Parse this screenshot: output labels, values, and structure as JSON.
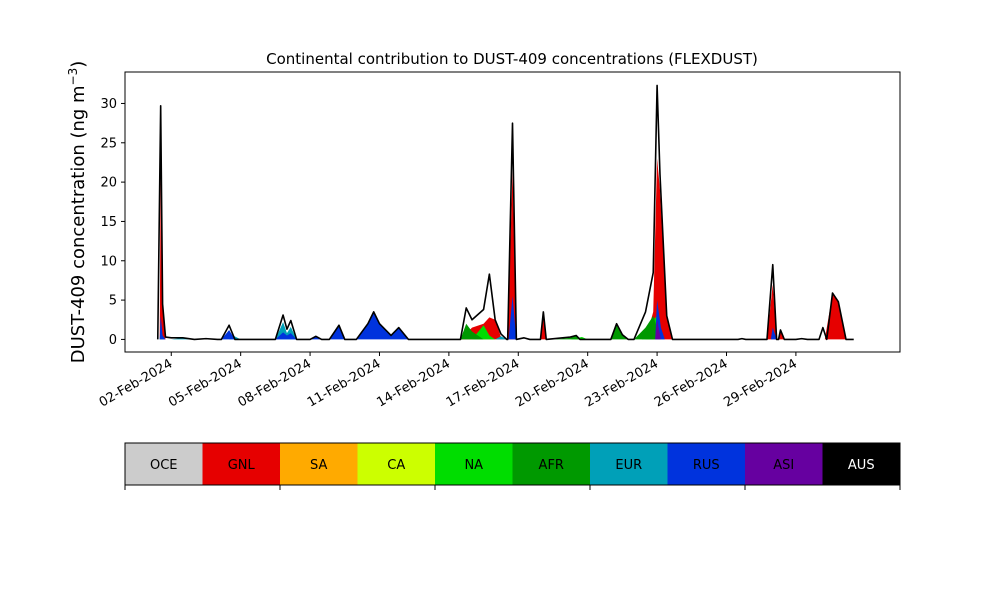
{
  "chart_data": {
    "type": "area",
    "stacked": true,
    "title": "Continental contribution to DUST-409 concentrations (FLEXDUST)",
    "ylabel": "DUST-409 concentration (ng m",
    "ylabel_superscript": "−3",
    "ylabel_close": ")",
    "xlabel": "",
    "x_range": [
      "2024-01-31T00:00",
      "2024-03-04T12:00"
    ],
    "ylim": [
      -1.6,
      34
    ],
    "y_ticks": [
      0,
      5,
      10,
      15,
      20,
      25,
      30
    ],
    "x_ticks": [
      "02-Feb-2024",
      "05-Feb-2024",
      "08-Feb-2024",
      "11-Feb-2024",
      "14-Feb-2024",
      "17-Feb-2024",
      "20-Feb-2024",
      "23-Feb-2024",
      "26-Feb-2024",
      "29-Feb-2024"
    ],
    "x_tick_dates": [
      "2024-02-02",
      "2024-02-05",
      "2024-02-08",
      "2024-02-11",
      "2024-02-14",
      "2024-02-17",
      "2024-02-20",
      "2024-02-23",
      "2024-02-26",
      "2024-02-29"
    ],
    "grid": false,
    "series": [
      {
        "name": "OCE",
        "color": "#cccccc",
        "points": []
      },
      {
        "name": "GNL",
        "color": "#e60000",
        "points": [
          [
            "2024-02-01T12:00",
            0
          ],
          [
            "2024-02-01T13:00",
            22
          ],
          [
            "2024-02-01T15:00",
            4
          ],
          [
            "2024-02-01T18:00",
            0
          ],
          [
            "2024-02-14T12:00",
            0
          ],
          [
            "2024-02-15T00:00",
            1.5
          ],
          [
            "2024-02-15T12:00",
            2.0
          ],
          [
            "2024-02-15T18:00",
            2.8
          ],
          [
            "2024-02-16T00:00",
            2.5
          ],
          [
            "2024-02-16T06:00",
            0.3
          ],
          [
            "2024-02-16T12:00",
            0
          ],
          [
            "2024-02-16T13:00",
            0
          ],
          [
            "2024-02-16T18:00",
            21.5
          ],
          [
            "2024-02-16T22:00",
            0
          ],
          [
            "2024-02-17T23:00",
            0
          ],
          [
            "2024-02-18T02:00",
            2.8
          ],
          [
            "2024-02-18T05:00",
            0
          ],
          [
            "2024-02-22T12:00",
            0
          ],
          [
            "2024-02-22T20:00",
            3.5
          ],
          [
            "2024-02-23T00:00",
            23
          ],
          [
            "2024-02-23T03:00",
            19
          ],
          [
            "2024-02-23T10:00",
            3
          ],
          [
            "2024-02-23T16:00",
            0
          ],
          [
            "2024-02-27T18:00",
            0
          ],
          [
            "2024-02-28T00:00",
            7.0
          ],
          [
            "2024-02-28T04:00",
            0
          ],
          [
            "2024-02-28T06:00",
            0
          ],
          [
            "2024-02-28T08:00",
            1.0
          ],
          [
            "2024-02-28T12:00",
            0
          ],
          [
            "2024-03-01T06:00",
            0
          ],
          [
            "2024-03-01T14:00",
            5.8
          ],
          [
            "2024-03-01T20:00",
            4.8
          ],
          [
            "2024-03-02T04:00",
            0
          ]
        ]
      },
      {
        "name": "SA",
        "color": "#ffaa00",
        "points": [
          [
            "2024-02-22T22:00",
            0
          ],
          [
            "2024-02-23T02:00",
            1.0
          ],
          [
            "2024-02-23T06:00",
            0
          ]
        ]
      },
      {
        "name": "CA",
        "color": "#ccff00",
        "points": []
      },
      {
        "name": "NA",
        "color": "#00dd00",
        "points": [
          [
            "2024-02-15T00:00",
            0
          ],
          [
            "2024-02-15T12:00",
            1.8
          ],
          [
            "2024-02-15T18:00",
            0.5
          ],
          [
            "2024-02-16T00:00",
            0
          ],
          [
            "2024-02-19T06:00",
            0
          ],
          [
            "2024-02-19T18:00",
            0.3
          ],
          [
            "2024-02-20T00:00",
            0
          ],
          [
            "2024-02-22T08:00",
            0
          ],
          [
            "2024-02-22T16:00",
            2.0
          ],
          [
            "2024-02-23T00:00",
            3.0
          ],
          [
            "2024-02-23T06:00",
            0
          ]
        ]
      },
      {
        "name": "AFR",
        "color": "#009900",
        "points": [
          [
            "2024-02-14T12:00",
            0
          ],
          [
            "2024-02-14T18:00",
            2.0
          ],
          [
            "2024-02-15T00:00",
            1.0
          ],
          [
            "2024-02-15T12:00",
            0
          ],
          [
            "2024-02-18T12:00",
            0
          ],
          [
            "2024-02-19T06:00",
            0.2
          ],
          [
            "2024-02-19T12:00",
            0.5
          ],
          [
            "2024-02-19T16:00",
            0
          ],
          [
            "2024-02-21T00:00",
            0
          ],
          [
            "2024-02-21T06:00",
            1.8
          ],
          [
            "2024-02-21T12:00",
            0.5
          ],
          [
            "2024-02-21T18:00",
            0
          ],
          [
            "2024-02-22T00:00",
            0
          ],
          [
            "2024-02-22T12:00",
            1.5
          ],
          [
            "2024-02-22T20:00",
            3.0
          ],
          [
            "2024-02-23T04:00",
            0
          ]
        ]
      },
      {
        "name": "EUR",
        "color": "#00a0b8",
        "points": [
          [
            "2024-02-01T12:00",
            0
          ],
          [
            "2024-02-01T13:00",
            1.0
          ],
          [
            "2024-02-01T16:00",
            0
          ],
          [
            "2024-02-02T00:00",
            0
          ],
          [
            "2024-02-02T12:00",
            0.2
          ],
          [
            "2024-02-03T00:00",
            0
          ],
          [
            "2024-02-04T12:00",
            0
          ],
          [
            "2024-02-04T16:00",
            0.5
          ],
          [
            "2024-02-05T00:00",
            0
          ],
          [
            "2024-02-06T12:00",
            0
          ],
          [
            "2024-02-06T20:00",
            2.2
          ],
          [
            "2024-02-07T00:00",
            0.8
          ],
          [
            "2024-02-07T04:00",
            1.6
          ],
          [
            "2024-02-07T10:00",
            0
          ],
          [
            "2024-02-16T00:00",
            0
          ],
          [
            "2024-02-16T06:00",
            0.4
          ],
          [
            "2024-02-16T12:00",
            0
          ],
          [
            "2024-02-23T00:00",
            0
          ],
          [
            "2024-02-23T02:00",
            1.0
          ],
          [
            "2024-02-23T04:00",
            0
          ]
        ]
      },
      {
        "name": "RUS",
        "color": "#0033dd",
        "points": [
          [
            "2024-02-01T12:00",
            0
          ],
          [
            "2024-02-01T13:00",
            3.0
          ],
          [
            "2024-02-01T15:00",
            0.5
          ],
          [
            "2024-02-01T18:00",
            0
          ],
          [
            "2024-02-03T00:00",
            0
          ],
          [
            "2024-02-03T12:00",
            0.1
          ],
          [
            "2024-02-04T00:00",
            0
          ],
          [
            "2024-02-04T04:00",
            0
          ],
          [
            "2024-02-04T12:00",
            1.2
          ],
          [
            "2024-02-04T18:00",
            0
          ],
          [
            "2024-02-06T12:00",
            0
          ],
          [
            "2024-02-06T20:00",
            0.9
          ],
          [
            "2024-02-07T00:00",
            0.5
          ],
          [
            "2024-02-07T04:00",
            0.8
          ],
          [
            "2024-02-07T10:00",
            0
          ],
          [
            "2024-02-08T00:00",
            0
          ],
          [
            "2024-02-08T06:00",
            0.4
          ],
          [
            "2024-02-08T12:00",
            0
          ],
          [
            "2024-02-08T20:00",
            0
          ],
          [
            "2024-02-09T06:00",
            1.8
          ],
          [
            "2024-02-09T12:00",
            0
          ],
          [
            "2024-02-10T00:00",
            0
          ],
          [
            "2024-02-10T12:00",
            2.0
          ],
          [
            "2024-02-10T18:00",
            3.5
          ],
          [
            "2024-02-11T00:00",
            2.0
          ],
          [
            "2024-02-11T12:00",
            0.5
          ],
          [
            "2024-02-11T20:00",
            1.5
          ],
          [
            "2024-02-12T06:00",
            0
          ],
          [
            "2024-02-16T14:00",
            0
          ],
          [
            "2024-02-16T18:00",
            5.5
          ],
          [
            "2024-02-16T22:00",
            0
          ],
          [
            "2024-02-22T22:00",
            0
          ],
          [
            "2024-02-23T00:00",
            5.0
          ],
          [
            "2024-02-23T04:00",
            1.5
          ],
          [
            "2024-02-23T08:00",
            0
          ],
          [
            "2024-02-27T22:00",
            0
          ],
          [
            "2024-02-28T00:00",
            1.5
          ],
          [
            "2024-02-28T04:00",
            0
          ]
        ]
      },
      {
        "name": "ASI",
        "color": "#6600a0",
        "points": [
          [
            "2024-02-22T22:00",
            0
          ],
          [
            "2024-02-23T00:00",
            2.5
          ],
          [
            "2024-02-23T04:00",
            0
          ]
        ]
      },
      {
        "name": "AUS",
        "color": "#000000",
        "points": []
      }
    ],
    "total": {
      "color": "#000000",
      "points": [
        [
          "2024-02-01T10:00",
          0
        ],
        [
          "2024-02-01T13:00",
          29.7
        ],
        [
          "2024-02-01T15:00",
          4.5
        ],
        [
          "2024-02-01T18:00",
          0.3
        ],
        [
          "2024-02-02T00:00",
          0.2
        ],
        [
          "2024-02-02T12:00",
          0.2
        ],
        [
          "2024-02-03T00:00",
          0
        ],
        [
          "2024-02-03T12:00",
          0.1
        ],
        [
          "2024-02-04T00:00",
          0
        ],
        [
          "2024-02-04T04:00",
          0
        ],
        [
          "2024-02-04T12:00",
          1.8
        ],
        [
          "2024-02-04T18:00",
          0
        ],
        [
          "2024-02-06T12:00",
          0
        ],
        [
          "2024-02-06T20:00",
          3.1
        ],
        [
          "2024-02-07T00:00",
          1.3
        ],
        [
          "2024-02-07T04:00",
          2.4
        ],
        [
          "2024-02-07T10:00",
          0
        ],
        [
          "2024-02-08T00:00",
          0
        ],
        [
          "2024-02-08T06:00",
          0.4
        ],
        [
          "2024-02-08T12:00",
          0
        ],
        [
          "2024-02-08T20:00",
          0
        ],
        [
          "2024-02-09T06:00",
          1.8
        ],
        [
          "2024-02-09T12:00",
          0
        ],
        [
          "2024-02-10T00:00",
          0
        ],
        [
          "2024-02-10T12:00",
          2.0
        ],
        [
          "2024-02-10T18:00",
          3.5
        ],
        [
          "2024-02-11T00:00",
          2.0
        ],
        [
          "2024-02-11T12:00",
          0.5
        ],
        [
          "2024-02-11T20:00",
          1.5
        ],
        [
          "2024-02-12T06:00",
          0
        ],
        [
          "2024-02-14T12:00",
          0
        ],
        [
          "2024-02-14T18:00",
          4.0
        ],
        [
          "2024-02-15T00:00",
          2.5
        ],
        [
          "2024-02-15T12:00",
          3.8
        ],
        [
          "2024-02-15T18:00",
          8.3
        ],
        [
          "2024-02-16T00:00",
          2.5
        ],
        [
          "2024-02-16T06:00",
          0.7
        ],
        [
          "2024-02-16T12:00",
          0
        ],
        [
          "2024-02-16T13:00",
          0
        ],
        [
          "2024-02-16T18:00",
          27.5
        ],
        [
          "2024-02-16T22:00",
          0
        ],
        [
          "2024-02-17T06:00",
          0.2
        ],
        [
          "2024-02-17T12:00",
          0
        ],
        [
          "2024-02-17T23:00",
          0
        ],
        [
          "2024-02-18T02:00",
          3.5
        ],
        [
          "2024-02-18T05:00",
          0
        ],
        [
          "2024-02-19T06:00",
          0.3
        ],
        [
          "2024-02-19T12:00",
          0.5
        ],
        [
          "2024-02-19T16:00",
          0
        ],
        [
          "2024-02-21T00:00",
          0
        ],
        [
          "2024-02-21T06:00",
          2.0
        ],
        [
          "2024-02-21T12:00",
          0.6
        ],
        [
          "2024-02-21T18:00",
          0
        ],
        [
          "2024-02-22T00:00",
          0
        ],
        [
          "2024-02-22T12:00",
          3.5
        ],
        [
          "2024-02-22T20:00",
          8.5
        ],
        [
          "2024-02-23T00:00",
          32.3
        ],
        [
          "2024-02-23T03:00",
          21
        ],
        [
          "2024-02-23T10:00",
          3
        ],
        [
          "2024-02-23T16:00",
          0
        ],
        [
          "2024-02-26T12:00",
          0
        ],
        [
          "2024-02-26T16:00",
          0.1
        ],
        [
          "2024-02-26T20:00",
          0
        ],
        [
          "2024-02-27T18:00",
          0
        ],
        [
          "2024-02-28T00:00",
          9.5
        ],
        [
          "2024-02-28T04:00",
          0
        ],
        [
          "2024-02-28T06:00",
          0
        ],
        [
          "2024-02-28T08:00",
          1.2
        ],
        [
          "2024-02-28T12:00",
          0
        ],
        [
          "2024-02-29T00:00",
          0
        ],
        [
          "2024-02-29T06:00",
          0.1
        ],
        [
          "2024-02-29T12:00",
          0
        ],
        [
          "2024-03-01T00:00",
          0
        ],
        [
          "2024-03-01T04:00",
          1.5
        ],
        [
          "2024-03-01T08:00",
          0
        ],
        [
          "2024-03-01T14:00",
          5.9
        ],
        [
          "2024-03-01T20:00",
          4.8
        ],
        [
          "2024-03-02T04:00",
          0
        ],
        [
          "2024-03-02T12:00",
          0
        ]
      ]
    },
    "legend": {
      "placement": "bottom colorbar",
      "entries": [
        "OCE",
        "GNL",
        "SA",
        "CA",
        "NA",
        "AFR",
        "EUR",
        "RUS",
        "ASI",
        "AUS"
      ],
      "colors": [
        "#cccccc",
        "#e60000",
        "#ffaa00",
        "#ccff00",
        "#00dd00",
        "#009900",
        "#00a0b8",
        "#0033dd",
        "#6600a0",
        "#000000"
      ],
      "text_colors": [
        "#000000",
        "#000000",
        "#000000",
        "#000000",
        "#000000",
        "#000000",
        "#000000",
        "#000000",
        "#000000",
        "#ffffff"
      ]
    }
  }
}
